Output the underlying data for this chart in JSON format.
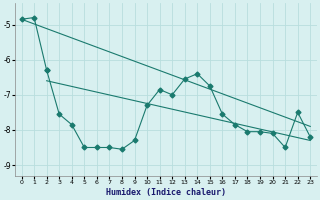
{
  "xlabel": "Humidex (Indice chaleur)",
  "background_color": "#d8f0f0",
  "grid_color": "#b8dede",
  "line_color": "#1a7a6e",
  "xlim": [
    -0.5,
    23.5
  ],
  "ylim": [
    -9.3,
    -4.4
  ],
  "yticks": [
    -9,
    -8,
    -7,
    -6,
    -5
  ],
  "xticks": [
    0,
    1,
    2,
    3,
    4,
    5,
    6,
    7,
    8,
    9,
    10,
    11,
    12,
    13,
    14,
    15,
    16,
    17,
    18,
    19,
    20,
    21,
    22,
    23
  ],
  "series1_x": [
    0,
    1,
    2
  ],
  "series1_y": [
    -4.85,
    -4.8,
    -6.3
  ],
  "series2_x": [
    2,
    3,
    4,
    5,
    6,
    7,
    8,
    9,
    10,
    11,
    12,
    13,
    14,
    15,
    16,
    17,
    18,
    19,
    20,
    21,
    22,
    23
  ],
  "series2_y": [
    -6.3,
    -7.55,
    -7.85,
    -8.5,
    -8.5,
    -8.5,
    -8.55,
    -8.3,
    -7.3,
    -6.85,
    -7.0,
    -6.55,
    -6.4,
    -6.75,
    -7.55,
    -7.85,
    -8.05,
    -8.05,
    -8.1,
    -8.5,
    -7.5,
    -8.2
  ],
  "trend1_x": [
    0,
    23
  ],
  "trend1_y": [
    -4.85,
    -7.9
  ],
  "trend2_x": [
    2,
    23
  ],
  "trend2_y": [
    -6.6,
    -8.3
  ]
}
